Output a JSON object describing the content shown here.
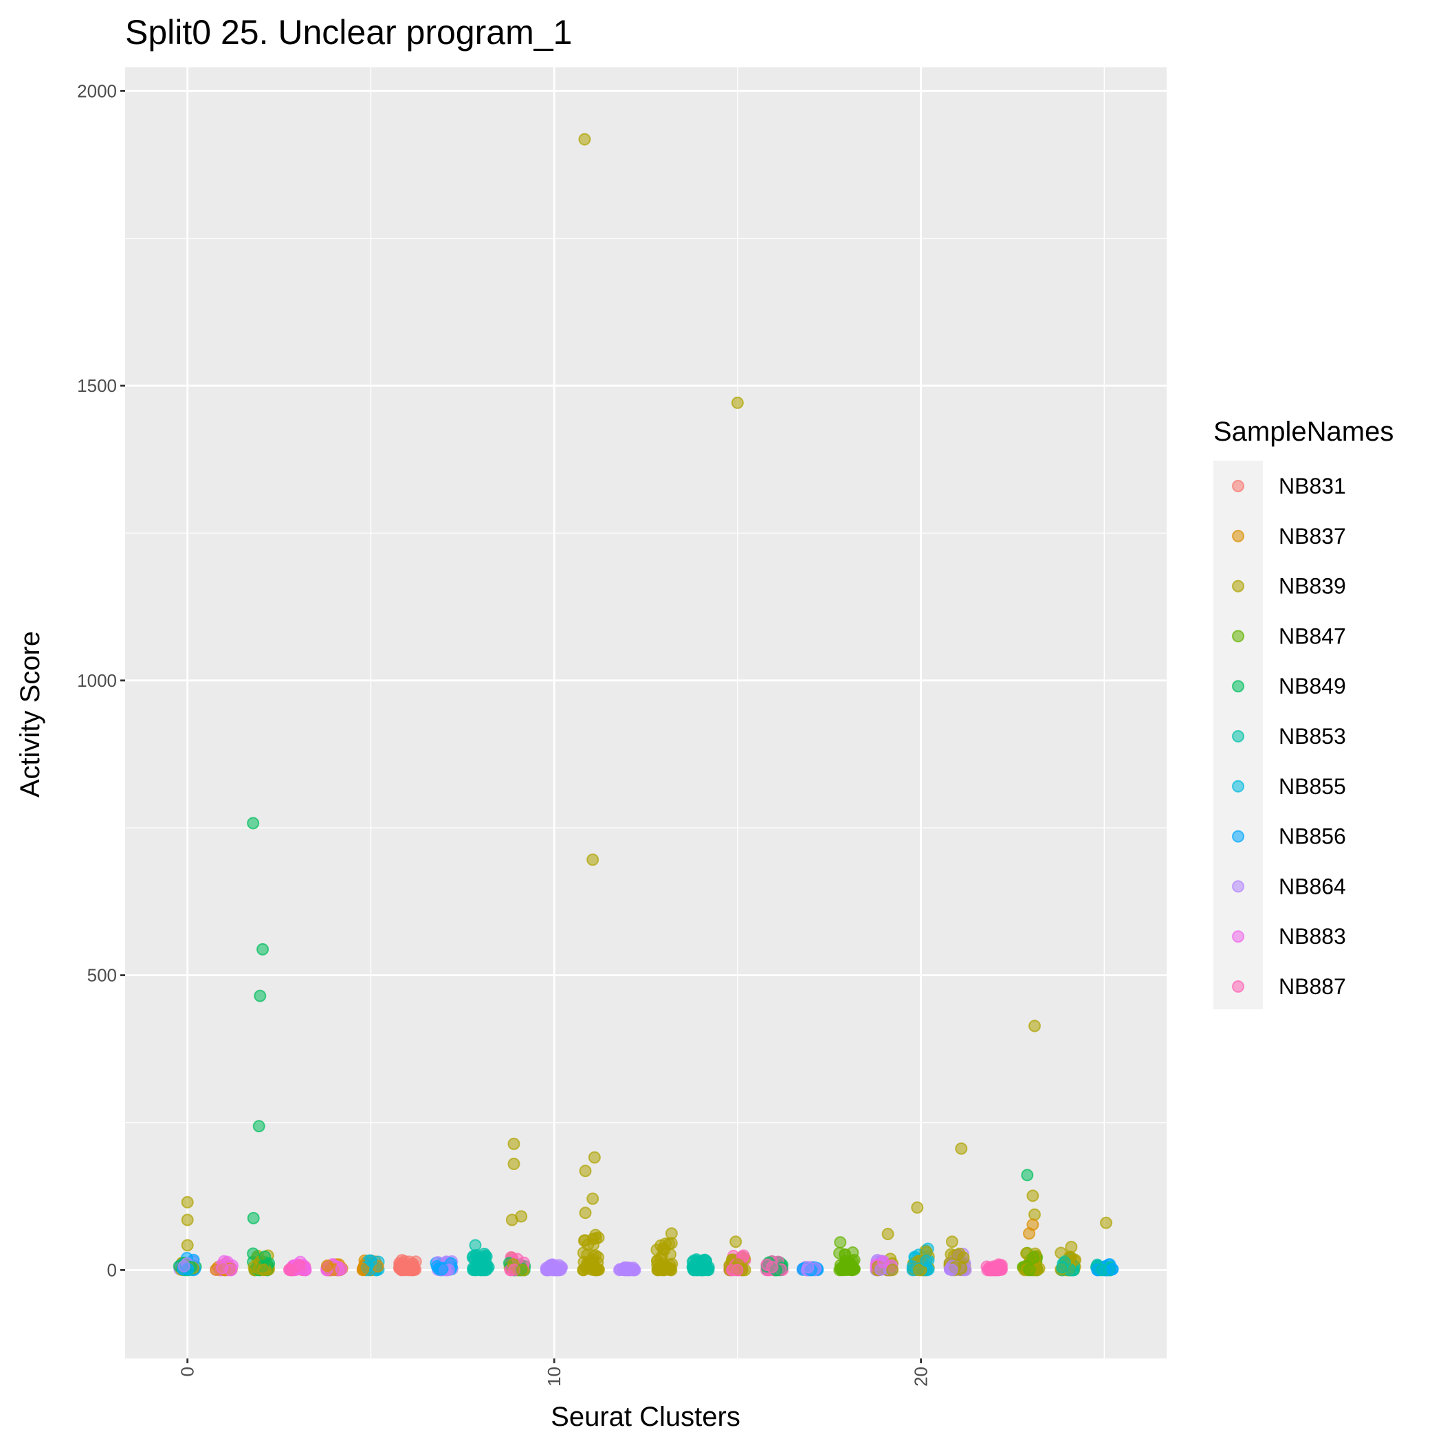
{
  "chart_data": {
    "type": "scatter",
    "title": "Split0 25. Unclear program_1",
    "xlabel": "Seurat Clusters",
    "ylabel": "Activity Score",
    "xlim": [
      -1.7,
      26.7
    ],
    "ylim": [
      -150,
      2040
    ],
    "x_ticks": [
      0,
      10,
      20
    ],
    "x_tick_labels": [
      "0",
      "10",
      "20"
    ],
    "y_ticks": [
      0,
      500,
      1000,
      1500,
      2000
    ],
    "y_tick_labels": [
      "0",
      "500",
      "1000",
      "1500",
      "2000"
    ],
    "grid": true,
    "legend": {
      "title": "SampleNames",
      "position": "right",
      "entries": [
        "NB831",
        "NB837",
        "NB839",
        "NB847",
        "NB849",
        "NB853",
        "NB855",
        "NB856",
        "NB864",
        "NB883",
        "NB887"
      ]
    },
    "colors": {
      "NB831": "#F8766D",
      "NB837": "#DB8E00",
      "NB839": "#AEA200",
      "NB847": "#64B200",
      "NB849": "#00BD5C",
      "NB853": "#00C1A7",
      "NB855": "#00BADE",
      "NB856": "#00A6FF",
      "NB864": "#B385FF",
      "NB883": "#EF67EB",
      "NB887": "#FF63B6"
    },
    "bulk": [
      {
        "cluster": 0,
        "samples": [
          "NB839",
          "NB849",
          "NB853",
          "NB856",
          "NB864"
        ],
        "max": 22
      },
      {
        "cluster": 1,
        "samples": [
          "NB837",
          "NB883"
        ],
        "max": 15
      },
      {
        "cluster": 2,
        "samples": [
          "NB849",
          "NB839"
        ],
        "max": 30
      },
      {
        "cluster": 3,
        "samples": [
          "NB883",
          "NB887"
        ],
        "max": 15
      },
      {
        "cluster": 4,
        "samples": [
          "NB837",
          "NB883"
        ],
        "max": 10
      },
      {
        "cluster": 5,
        "samples": [
          "NB837",
          "NB855"
        ],
        "max": 18
      },
      {
        "cluster": 6,
        "samples": [
          "NB831"
        ],
        "max": 20
      },
      {
        "cluster": 7,
        "samples": [
          "NB864",
          "NB856"
        ],
        "max": 15
      },
      {
        "cluster": 8,
        "samples": [
          "NB853"
        ],
        "max": 30
      },
      {
        "cluster": 9,
        "samples": [
          "NB839",
          "NB849",
          "NB887"
        ],
        "max": 30
      },
      {
        "cluster": 10,
        "samples": [
          "NB864"
        ],
        "max": 10
      },
      {
        "cluster": 11,
        "samples": [
          "NB839"
        ],
        "max": 60
      },
      {
        "cluster": 12,
        "samples": [
          "NB864"
        ],
        "max": 5
      },
      {
        "cluster": 13,
        "samples": [
          "NB839"
        ],
        "max": 50
      },
      {
        "cluster": 14,
        "samples": [
          "NB853"
        ],
        "max": 20
      },
      {
        "cluster": 15,
        "samples": [
          "NB839",
          "NB887"
        ],
        "max": 30
      },
      {
        "cluster": 16,
        "samples": [
          "NB849",
          "NB887"
        ],
        "max": 15
      },
      {
        "cluster": 17,
        "samples": [
          "NB856",
          "NB864"
        ],
        "max": 5
      },
      {
        "cluster": 18,
        "samples": [
          "NB847"
        ],
        "max": 30
      },
      {
        "cluster": 19,
        "samples": [
          "NB839",
          "NB864",
          "NB883"
        ],
        "max": 20
      },
      {
        "cluster": 20,
        "samples": [
          "NB839",
          "NB855"
        ],
        "max": 40
      },
      {
        "cluster": 21,
        "samples": [
          "NB839",
          "NB864"
        ],
        "max": 30
      },
      {
        "cluster": 22,
        "samples": [
          "NB887"
        ],
        "max": 10
      },
      {
        "cluster": 23,
        "samples": [
          "NB839",
          "NB847"
        ],
        "max": 30
      },
      {
        "cluster": 24,
        "samples": [
          "NB839",
          "NB853"
        ],
        "max": 30
      },
      {
        "cluster": 25,
        "samples": [
          "NB853",
          "NB856"
        ],
        "max": 10
      }
    ],
    "outliers": [
      {
        "x": 10.83,
        "y": 1918,
        "sample": "NB839"
      },
      {
        "x": 15.0,
        "y": 1471,
        "sample": "NB839"
      },
      {
        "x": 1.79,
        "y": 758,
        "sample": "NB849"
      },
      {
        "x": 11.05,
        "y": 696,
        "sample": "NB839"
      },
      {
        "x": 2.05,
        "y": 544,
        "sample": "NB849"
      },
      {
        "x": 1.98,
        "y": 465,
        "sample": "NB849"
      },
      {
        "x": 23.1,
        "y": 414,
        "sample": "NB839"
      },
      {
        "x": 1.95,
        "y": 244,
        "sample": "NB849"
      },
      {
        "x": 8.9,
        "y": 214,
        "sample": "NB839"
      },
      {
        "x": 8.9,
        "y": 180,
        "sample": "NB839"
      },
      {
        "x": 11.1,
        "y": 191,
        "sample": "NB839"
      },
      {
        "x": 10.85,
        "y": 168,
        "sample": "NB839"
      },
      {
        "x": 11.05,
        "y": 121,
        "sample": "NB839"
      },
      {
        "x": 10.85,
        "y": 97,
        "sample": "NB839"
      },
      {
        "x": 21.1,
        "y": 206,
        "sample": "NB839"
      },
      {
        "x": 22.9,
        "y": 161,
        "sample": "NB849"
      },
      {
        "x": 23.05,
        "y": 126,
        "sample": "NB839"
      },
      {
        "x": 23.1,
        "y": 94,
        "sample": "NB839"
      },
      {
        "x": 23.05,
        "y": 77,
        "sample": "NB837"
      },
      {
        "x": 22.95,
        "y": 62,
        "sample": "NB837"
      },
      {
        "x": 0.0,
        "y": 115,
        "sample": "NB839"
      },
      {
        "x": 0.0,
        "y": 85,
        "sample": "NB839"
      },
      {
        "x": 0.0,
        "y": 42,
        "sample": "NB839"
      },
      {
        "x": 1.8,
        "y": 88,
        "sample": "NB849"
      },
      {
        "x": 9.1,
        "y": 91,
        "sample": "NB839"
      },
      {
        "x": 8.85,
        "y": 85,
        "sample": "NB839"
      },
      {
        "x": 19.9,
        "y": 106,
        "sample": "NB839"
      },
      {
        "x": 13.2,
        "y": 62,
        "sample": "NB839"
      },
      {
        "x": 19.1,
        "y": 61,
        "sample": "NB839"
      },
      {
        "x": 25.05,
        "y": 80,
        "sample": "NB839"
      },
      {
        "x": 14.95,
        "y": 48,
        "sample": "NB839"
      },
      {
        "x": 20.85,
        "y": 48,
        "sample": "NB839"
      },
      {
        "x": 17.8,
        "y": 47,
        "sample": "NB847"
      },
      {
        "x": 7.85,
        "y": 42,
        "sample": "NB853"
      },
      {
        "x": 24.1,
        "y": 39,
        "sample": "NB839"
      }
    ]
  }
}
